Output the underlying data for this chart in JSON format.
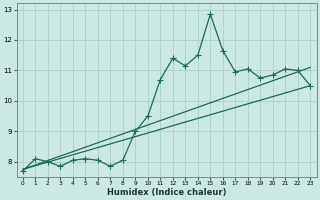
{
  "xlabel": "Humidex (Indice chaleur)",
  "ylabel": "",
  "xlim": [
    -0.5,
    23.5
  ],
  "ylim": [
    7.5,
    13.2
  ],
  "yticks": [
    8,
    9,
    10,
    11,
    12,
    13
  ],
  "xticks": [
    0,
    1,
    2,
    3,
    4,
    5,
    6,
    7,
    8,
    9,
    10,
    11,
    12,
    13,
    14,
    15,
    16,
    17,
    18,
    19,
    20,
    21,
    22,
    23
  ],
  "background_color": "#cce8e4",
  "grid_color": "#aacfc9",
  "line_color": "#1a6b5a",
  "line1_x": [
    0,
    1,
    2,
    3,
    4,
    5,
    6,
    7,
    8,
    9,
    10,
    11,
    12,
    13,
    14,
    15,
    16,
    17,
    18,
    19,
    20,
    21,
    22,
    23
  ],
  "line1_y": [
    7.7,
    8.1,
    8.0,
    7.85,
    8.05,
    8.1,
    8.05,
    7.85,
    8.05,
    9.0,
    9.5,
    10.7,
    11.4,
    11.15,
    11.5,
    12.85,
    11.65,
    10.95,
    11.05,
    10.75,
    10.85,
    11.05,
    11.0,
    10.5
  ],
  "line2_x": [
    0,
    23
  ],
  "line2_y": [
    7.75,
    10.5
  ],
  "line3_x": [
    0,
    23
  ],
  "line3_y": [
    7.75,
    11.1
  ],
  "marker": "+",
  "markersize": 4.0,
  "linewidth": 0.9
}
